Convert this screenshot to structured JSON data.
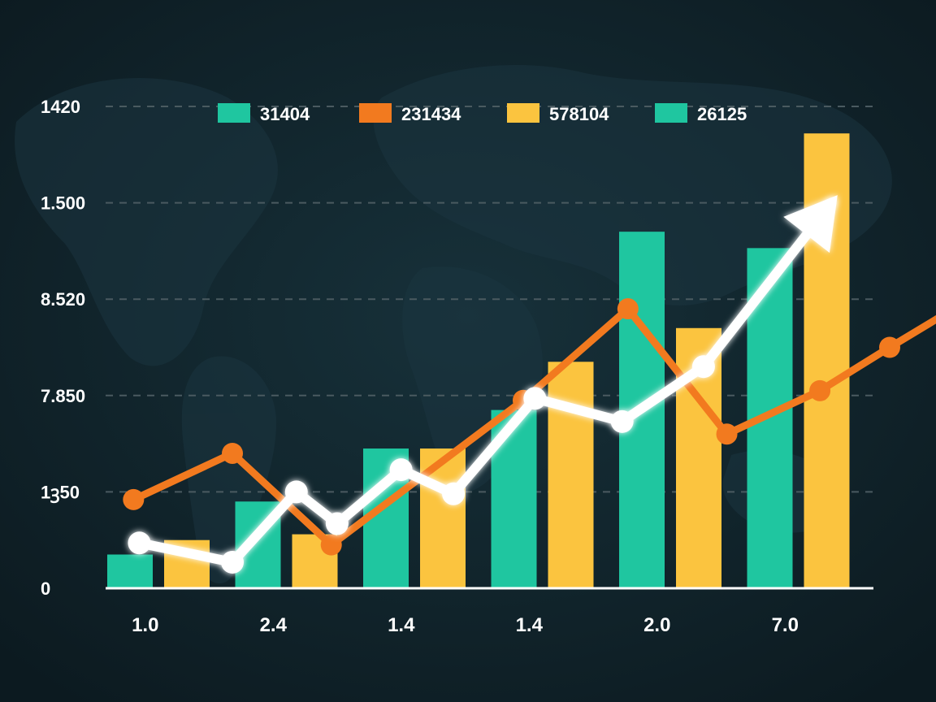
{
  "colors": {
    "background": "#0f1f26",
    "teal": "#1fc6a0",
    "yellow": "#fbc43f",
    "orange": "#f27a1f",
    "white": "#ffffff",
    "grid": "#4a5a60"
  },
  "chart_data": {
    "type": "bar",
    "title": "",
    "xlabel": "",
    "ylabel": "",
    "grid": true,
    "legend_position": "top",
    "y_ticks": [
      "0",
      "1ꝫ50",
      "7.850",
      "8.520",
      "1.500",
      "1420"
    ],
    "categories": [
      "1.0",
      "2.4",
      "1.4",
      "1.4",
      "2.0",
      "7.0"
    ],
    "ylim": [
      0,
      5
    ],
    "legend": [
      {
        "label": "31404",
        "color": "#1fc6a0"
      },
      {
        "label": "231434",
        "color": "#f27a1f"
      },
      {
        "label": "578104",
        "color": "#fbc43f"
      },
      {
        "label": "26125",
        "color": "#1fc6a0"
      }
    ],
    "bar_series": [
      {
        "color": "#1fc6a0",
        "values": [
          0.35,
          0.9,
          1.45,
          1.85,
          3.7,
          3.53
        ]
      },
      {
        "color": "#fbc43f",
        "values": [
          0.5,
          0.56,
          1.45,
          2.35,
          2.7,
          4.72
        ]
      }
    ],
    "line_series": [
      {
        "color": "#f27a1f",
        "points": [
          [
            0.1,
            0.92
          ],
          [
            0.95,
            1.4
          ],
          [
            1.8,
            0.45
          ],
          [
            3.45,
            1.95
          ],
          [
            4.35,
            2.9
          ],
          [
            5.2,
            1.6
          ],
          [
            6.0,
            2.05
          ],
          [
            6.6,
            2.5
          ],
          [
            7.15,
            2.9
          ]
        ]
      },
      {
        "color": "#ffffff",
        "points": [
          [
            0.15,
            0.47
          ],
          [
            0.95,
            0.27
          ],
          [
            1.5,
            1.0
          ],
          [
            1.85,
            0.67
          ],
          [
            2.4,
            1.23
          ],
          [
            2.85,
            0.98
          ],
          [
            3.55,
            1.97
          ],
          [
            4.3,
            1.73
          ],
          [
            5.0,
            2.3
          ],
          [
            6.1,
            4.0
          ]
        ],
        "arrow": true
      }
    ]
  }
}
